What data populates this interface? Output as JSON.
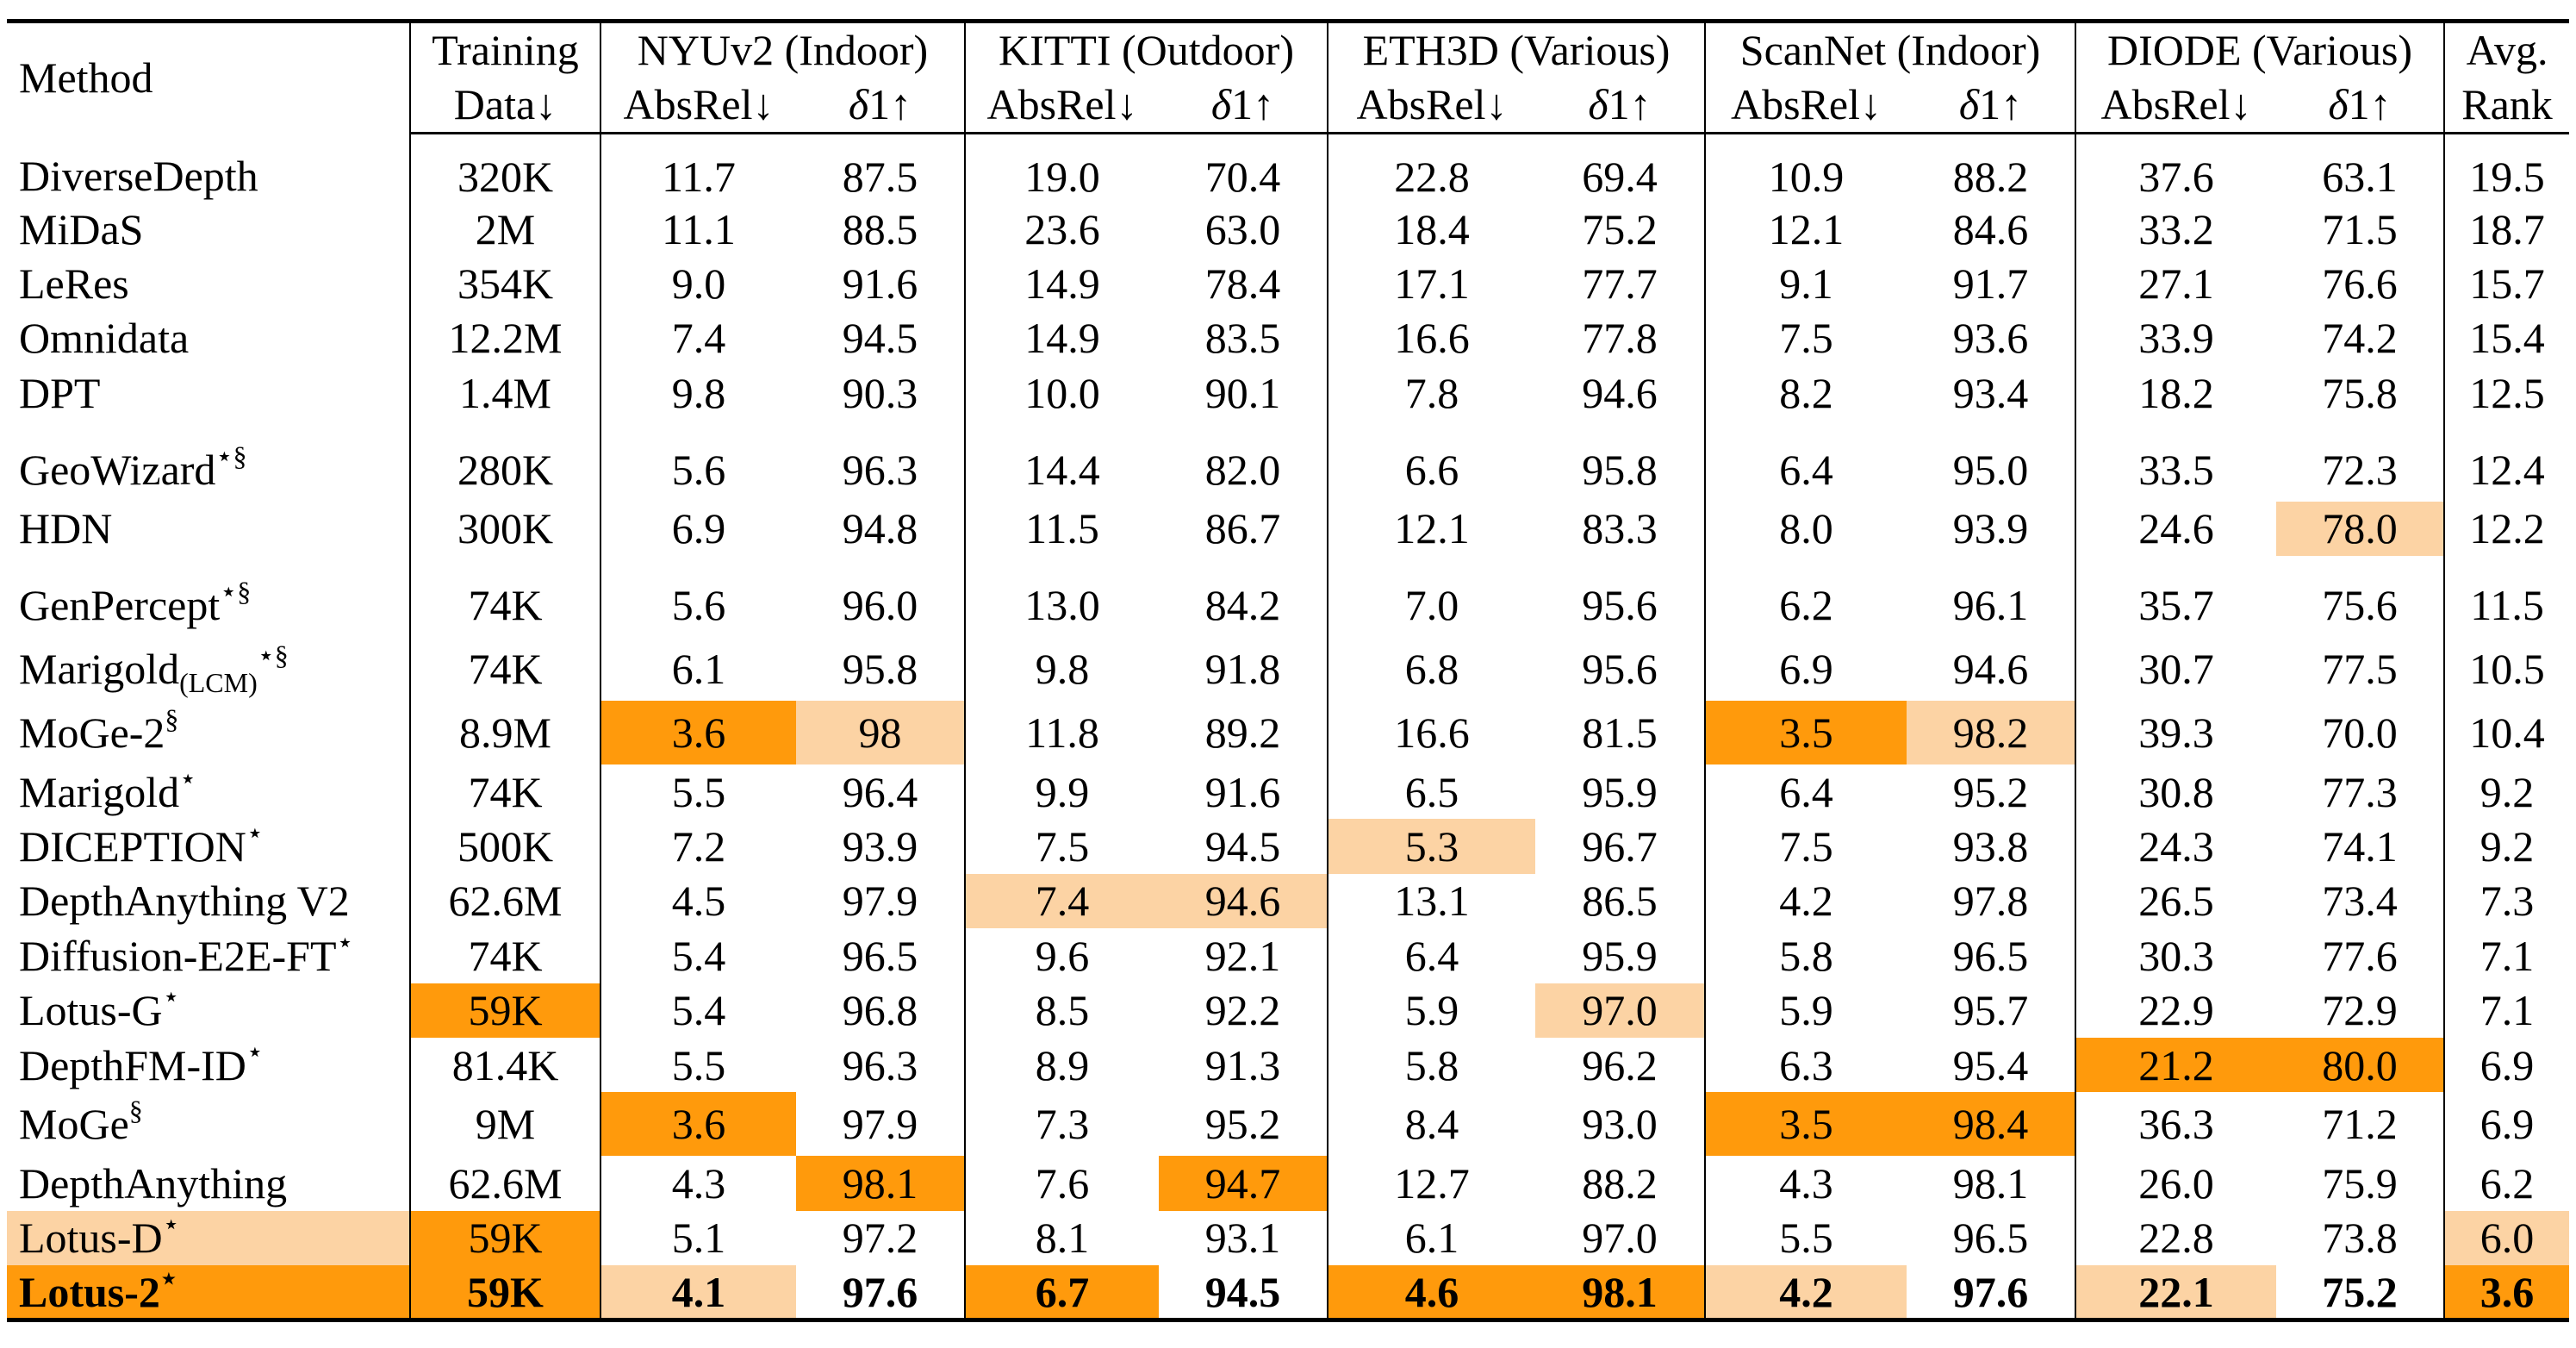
{
  "table": {
    "header": {
      "method": "Method",
      "training_line1": "Training",
      "training_line2": "Data↓",
      "groups": [
        {
          "name": "NYUv2 (Indoor)"
        },
        {
          "name": "KITTI (Outdoor)"
        },
        {
          "name": "ETH3D (Various)"
        },
        {
          "name": "ScanNet (Indoor)"
        },
        {
          "name": "DIODE (Various)"
        }
      ],
      "absrel": "AbsRel↓",
      "delta_sym": "δ",
      "delta_sub": "1↑",
      "avg_line1": "Avg.",
      "avg_line2": "Rank"
    },
    "rows": [
      {
        "name": "DiverseDepth",
        "sup": "",
        "sub": "",
        "data": "320K",
        "v": [
          "11.7",
          "87.5",
          "19.0",
          "70.4",
          "22.8",
          "69.4",
          "10.9",
          "88.2",
          "37.6",
          "63.1"
        ],
        "rank": "19.5"
      },
      {
        "name": "MiDaS",
        "sup": "",
        "sub": "",
        "data": "2M",
        "v": [
          "11.1",
          "88.5",
          "23.6",
          "63.0",
          "18.4",
          "75.2",
          "12.1",
          "84.6",
          "33.2",
          "71.5"
        ],
        "rank": "18.7"
      },
      {
        "name": "LeRes",
        "sup": "",
        "sub": "",
        "data": "354K",
        "v": [
          "9.0",
          "91.6",
          "14.9",
          "78.4",
          "17.1",
          "77.7",
          "9.1",
          "91.7",
          "27.1",
          "76.6"
        ],
        "rank": "15.7"
      },
      {
        "name": "Omnidata",
        "sup": "",
        "sub": "",
        "data": "12.2M",
        "v": [
          "7.4",
          "94.5",
          "14.9",
          "83.5",
          "16.6",
          "77.8",
          "7.5",
          "93.6",
          "33.9",
          "74.2"
        ],
        "rank": "15.4"
      },
      {
        "name": "DPT",
        "sup": "",
        "sub": "",
        "data": "1.4M",
        "v": [
          "9.8",
          "90.3",
          "10.0",
          "90.1",
          "7.8",
          "94.6",
          "8.2",
          "93.4",
          "18.2",
          "75.8"
        ],
        "rank": "12.5"
      },
      {
        "name": "GeoWizard",
        "sup": "⋆§",
        "sub": "",
        "data": "280K",
        "v": [
          "5.6",
          "96.3",
          "14.4",
          "82.0",
          "6.6",
          "95.8",
          "6.4",
          "95.0",
          "33.5",
          "72.3"
        ],
        "rank": "12.4"
      },
      {
        "name": "HDN",
        "sup": "",
        "sub": "",
        "data": "300K",
        "v": [
          "6.9",
          "94.8",
          "11.5",
          "86.7",
          "12.1",
          "83.3",
          "8.0",
          "93.9",
          "24.6",
          "78.0"
        ],
        "rank": "12.2"
      },
      {
        "name": "GenPercept",
        "sup": "⋆§",
        "sub": "",
        "data": "74K",
        "v": [
          "5.6",
          "96.0",
          "13.0",
          "84.2",
          "7.0",
          "95.6",
          "6.2",
          "96.1",
          "35.7",
          "75.6"
        ],
        "rank": "11.5"
      },
      {
        "name": "Marigold",
        "sup": "⋆§",
        "sub": "(LCM)",
        "data": "74K",
        "v": [
          "6.1",
          "95.8",
          "9.8",
          "91.8",
          "6.8",
          "95.6",
          "6.9",
          "94.6",
          "30.7",
          "77.5"
        ],
        "rank": "10.5"
      },
      {
        "name": "MoGe-2",
        "sup": "§",
        "sub": "",
        "data": "8.9M",
        "v": [
          "3.6",
          "98",
          "11.8",
          "89.2",
          "16.6",
          "81.5",
          "3.5",
          "98.2",
          "39.3",
          "70.0"
        ],
        "rank": "10.4"
      },
      {
        "name": "Marigold",
        "sup": "⋆",
        "sub": "",
        "data": "74K",
        "v": [
          "5.5",
          "96.4",
          "9.9",
          "91.6",
          "6.5",
          "95.9",
          "6.4",
          "95.2",
          "30.8",
          "77.3"
        ],
        "rank": "9.2"
      },
      {
        "name": "DICEPTION",
        "sup": "⋆",
        "sub": "",
        "data": "500K",
        "v": [
          "7.2",
          "93.9",
          "7.5",
          "94.5",
          "5.3",
          "96.7",
          "7.5",
          "93.8",
          "24.3",
          "74.1"
        ],
        "rank": "9.2"
      },
      {
        "name": "DepthAnything V2",
        "sup": "",
        "sub": "",
        "data": "62.6M",
        "v": [
          "4.5",
          "97.9",
          "7.4",
          "94.6",
          "13.1",
          "86.5",
          "4.2",
          "97.8",
          "26.5",
          "73.4"
        ],
        "rank": "7.3"
      },
      {
        "name": "Diffusion-E2E-FT",
        "sup": "⋆",
        "sub": "",
        "data": "74K",
        "v": [
          "5.4",
          "96.5",
          "9.6",
          "92.1",
          "6.4",
          "95.9",
          "5.8",
          "96.5",
          "30.3",
          "77.6"
        ],
        "rank": "7.1"
      },
      {
        "name": "Lotus-G",
        "sup": "⋆",
        "sub": "",
        "data": "59K",
        "v": [
          "5.4",
          "96.8",
          "8.5",
          "92.2",
          "5.9",
          "97.0",
          "5.9",
          "95.7",
          "22.9",
          "72.9"
        ],
        "rank": "7.1"
      },
      {
        "name": "DepthFM-ID",
        "sup": "⋆",
        "sub": "",
        "data": "81.4K",
        "v": [
          "5.5",
          "96.3",
          "8.9",
          "91.3",
          "5.8",
          "96.2",
          "6.3",
          "95.4",
          "21.2",
          "80.0"
        ],
        "rank": "6.9"
      },
      {
        "name": "MoGe",
        "sup": "§",
        "sub": "",
        "data": "9M",
        "v": [
          "3.6",
          "97.9",
          "7.3",
          "95.2",
          "8.4",
          "93.0",
          "3.5",
          "98.4",
          "36.3",
          "71.2"
        ],
        "rank": "6.9"
      },
      {
        "name": "DepthAnything",
        "sup": "",
        "sub": "",
        "data": "62.6M",
        "v": [
          "4.3",
          "98.1",
          "7.6",
          "94.7",
          "12.7",
          "88.2",
          "4.3",
          "98.1",
          "26.0",
          "75.9"
        ],
        "rank": "6.2"
      },
      {
        "name": "Lotus-D",
        "sup": "⋆",
        "sub": "",
        "data": "59K",
        "v": [
          "5.1",
          "97.2",
          "8.1",
          "93.1",
          "6.1",
          "97.0",
          "5.5",
          "96.5",
          "22.8",
          "73.8"
        ],
        "rank": "6.0"
      },
      {
        "name": "Lotus-2",
        "sup": "⋆",
        "sub": "",
        "data": "59K",
        "v": [
          "4.1",
          "97.6",
          "6.7",
          "94.5",
          "4.6",
          "98.1",
          "4.2",
          "97.6",
          "22.1",
          "75.2"
        ],
        "rank": "3.6"
      }
    ]
  },
  "colors": {
    "best": "#ff9a0c",
    "second": "#fcd3a4"
  }
}
